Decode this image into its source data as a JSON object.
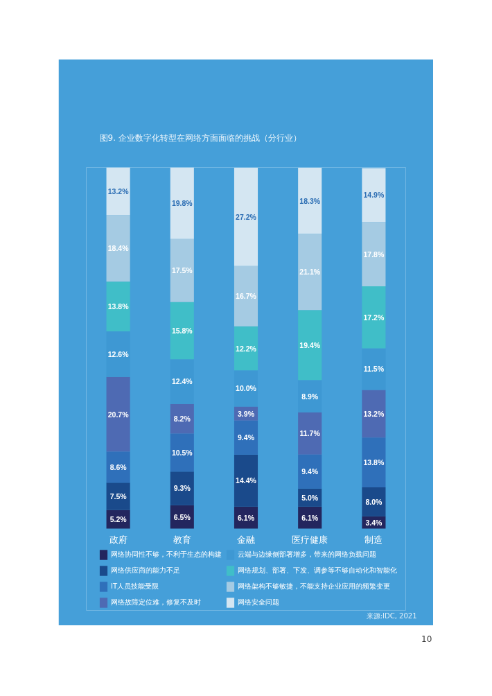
{
  "chart_data": {
    "type": "bar",
    "stacked": true,
    "legend": "bottom",
    "title": "图9. 企业数字化转型在网络方面面临的挑战（分行业）",
    "categories": [
      "政府",
      "教育",
      "金融",
      "医疗健康",
      "制造"
    ],
    "series": [
      {
        "name": "网络协同性不够，不利于生态的构建",
        "color": "#23265e",
        "values": [
          5.2,
          6.5,
          6.1,
          6.1,
          3.4
        ],
        "value_labels": [
          "5.2%",
          "6.5%",
          "6.1%",
          "6.1%",
          "3.4%"
        ]
      },
      {
        "name": "网络供应商的能力不足",
        "color": "#1a4a8b",
        "values": [
          7.5,
          9.3,
          14.4,
          5.0,
          8.0
        ],
        "value_labels": [
          "7.5%",
          "9.3%",
          "14.4%",
          "5.0%",
          "8.0%"
        ]
      },
      {
        "name": "IT人员技能受限",
        "color": "#2f70ba",
        "values": [
          8.6,
          10.5,
          9.4,
          9.4,
          13.8
        ],
        "value_labels": [
          "8.6%",
          "10.5%",
          "9.4%",
          "9.4%",
          "13.8%"
        ]
      },
      {
        "name": "网络故障定位难，修复不及时",
        "color": "#4e6ab3",
        "values": [
          20.7,
          8.2,
          3.9,
          11.7,
          13.2
        ],
        "value_labels": [
          "20.7%",
          "8.2%",
          "3.9%",
          "11.7%",
          "13.2%"
        ]
      },
      {
        "name": "云端与边缘侧部署增多，带来的网络负载问题",
        "color": "#3e98d3",
        "values": [
          12.6,
          12.4,
          10.0,
          8.9,
          11.5
        ],
        "value_labels": [
          "12.6%",
          "12.4%",
          "10.0%",
          "8.9%",
          "11.5%"
        ]
      },
      {
        "name": "网络规划、部署、下发、调参等不够自动化和智能化",
        "color": "#40bec8",
        "values": [
          13.8,
          15.8,
          12.2,
          19.4,
          17.2
        ],
        "value_labels": [
          "13.8%",
          "15.8%",
          "12.2%",
          "19.4%",
          "17.2%"
        ]
      },
      {
        "name": "网络架构不够敏捷，不能支持企业应用的频繁变更",
        "color": "#a5cbe3",
        "values": [
          18.4,
          17.5,
          16.7,
          21.1,
          17.8
        ],
        "value_labels": [
          "18.4%",
          "17.5%",
          "16.7%",
          "21.1%",
          "17.8%"
        ]
      },
      {
        "name": "网络安全问题",
        "color": "#d4e6f2",
        "values": [
          13.2,
          19.8,
          27.2,
          18.3,
          14.9
        ],
        "value_labels": [
          "13.2%",
          "19.8%",
          "27.2%",
          "18.3%",
          "14.9%"
        ]
      }
    ],
    "annotations": [
      "来源:IDC, 2021",
      "10"
    ]
  }
}
